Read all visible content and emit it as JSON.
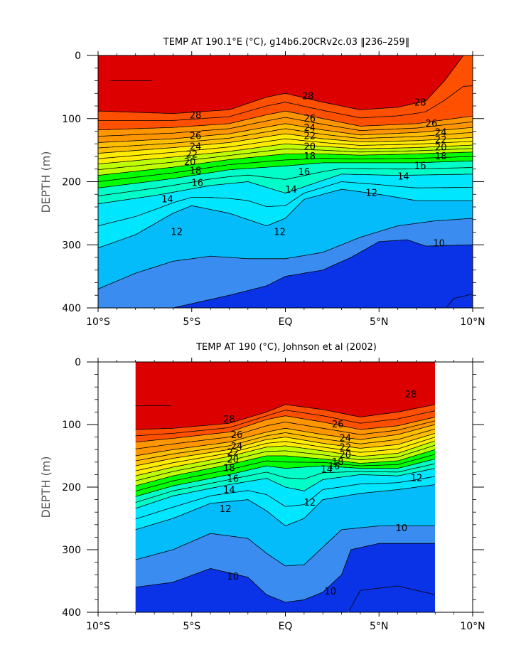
{
  "chart_data": [
    {
      "type": "heatmap",
      "subtype": "filled-contour depth section",
      "title": "TEMP AT 190.1°E (°C), g14b6.20CRv2c.03 ‖236–259‖",
      "ylabel": "DEPTH (m)",
      "xlabel": "",
      "x_ticks": [
        -10,
        -5,
        0,
        5,
        10
      ],
      "x_tick_labels": [
        "10°S",
        "5°S",
        "EQ",
        "5°N",
        "10°N"
      ],
      "y_ticks": [
        0,
        100,
        200,
        300,
        400
      ],
      "y_tick_labels": [
        "0",
        "100",
        "200",
        "300",
        "400"
      ],
      "xlim": [
        -10,
        10
      ],
      "ylim": [
        400,
        0
      ],
      "y_axis_inverted": true,
      "data_extent": [
        -10,
        10
      ],
      "contour_interval": 1,
      "contour_labels": [
        {
          "text": "28",
          "x": -4.8,
          "y": 95
        },
        {
          "text": "28",
          "x": 1.2,
          "y": 65
        },
        {
          "text": "28",
          "x": 7.2,
          "y": 75
        },
        {
          "text": "26",
          "x": -4.8,
          "y": 128
        },
        {
          "text": "24",
          "x": -4.8,
          "y": 145
        },
        {
          "text": "22",
          "x": -5.0,
          "y": 157
        },
        {
          "text": "20",
          "x": -5.1,
          "y": 169
        },
        {
          "text": "18",
          "x": -4.8,
          "y": 183
        },
        {
          "text": "16",
          "x": -4.7,
          "y": 202
        },
        {
          "text": "14",
          "x": -6.3,
          "y": 228
        },
        {
          "text": "12",
          "x": -5.8,
          "y": 280
        },
        {
          "text": "26",
          "x": 1.3,
          "y": 100
        },
        {
          "text": "24",
          "x": 1.3,
          "y": 115
        },
        {
          "text": "22",
          "x": 1.3,
          "y": 128
        },
        {
          "text": "20",
          "x": 1.3,
          "y": 145
        },
        {
          "text": "18",
          "x": 1.3,
          "y": 160
        },
        {
          "text": "16",
          "x": 1.0,
          "y": 185
        },
        {
          "text": "14",
          "x": 0.3,
          "y": 213
        },
        {
          "text": "12",
          "x": -0.3,
          "y": 280
        },
        {
          "text": "12",
          "x": 4.6,
          "y": 218
        },
        {
          "text": "26",
          "x": 7.8,
          "y": 108
        },
        {
          "text": "24",
          "x": 8.3,
          "y": 122
        },
        {
          "text": "22",
          "x": 8.3,
          "y": 134
        },
        {
          "text": "20",
          "x": 8.3,
          "y": 146
        },
        {
          "text": "18",
          "x": 8.3,
          "y": 160
        },
        {
          "text": "16",
          "x": 7.2,
          "y": 175
        },
        {
          "text": "14",
          "x": 6.3,
          "y": 192
        },
        {
          "text": "10",
          "x": 8.2,
          "y": 298
        }
      ],
      "color_levels": [
        {
          "label": "9-10",
          "color": "#0a32e6"
        },
        {
          "label": "10-11",
          "color": "#3a8cf0"
        },
        {
          "label": "11-12",
          "color": "#04bcfa"
        },
        {
          "label": "12-13",
          "color": "#00d2ff"
        },
        {
          "label": "13-14",
          "color": "#00e6ff"
        },
        {
          "label": "14-15",
          "color": "#00ffff"
        },
        {
          "label": "15-16",
          "color": "#00ffc8"
        },
        {
          "label": "16-17",
          "color": "#00ff82"
        },
        {
          "label": "17-18",
          "color": "#00ff00"
        },
        {
          "label": "18-19",
          "color": "#66ff00"
        },
        {
          "label": "19-20",
          "color": "#bfff00"
        },
        {
          "label": "20-21",
          "color": "#ffff00"
        },
        {
          "label": "21-22",
          "color": "#ffec00"
        },
        {
          "label": "22-23",
          "color": "#ffd200"
        },
        {
          "label": "23-24",
          "color": "#ffbe00"
        },
        {
          "label": "24-25",
          "color": "#ffaa00"
        },
        {
          "label": "25-26",
          "color": "#ff9600"
        },
        {
          "label": "26-27",
          "color": "#ff7800"
        },
        {
          "label": "27-28",
          "color": "#ff5000"
        },
        {
          "label": "28-29",
          "color": "#ff0000"
        },
        {
          "label": "29-30",
          "color": "#dd0000"
        }
      ]
    },
    {
      "type": "heatmap",
      "subtype": "filled-contour depth section",
      "title": "TEMP AT 190 (°C), Johnson et al (2002)",
      "ylabel": "DEPTH (m)",
      "xlabel": "",
      "x_ticks": [
        -10,
        -5,
        0,
        5,
        10
      ],
      "x_tick_labels": [
        "10°S",
        "5°S",
        "EQ",
        "5°N",
        "10°N"
      ],
      "y_ticks": [
        0,
        100,
        200,
        300,
        400
      ],
      "y_tick_labels": [
        "0",
        "100",
        "200",
        "300",
        "400"
      ],
      "xlim": [
        -10,
        10
      ],
      "ylim": [
        400,
        0
      ],
      "y_axis_inverted": true,
      "data_extent": [
        -8,
        8
      ],
      "contour_interval": 1,
      "contour_labels": [
        {
          "text": "28",
          "x": -3.0,
          "y": 92
        },
        {
          "text": "28",
          "x": 6.7,
          "y": 52
        },
        {
          "text": "26",
          "x": -2.6,
          "y": 117
        },
        {
          "text": "24",
          "x": -2.6,
          "y": 135
        },
        {
          "text": "22",
          "x": -2.8,
          "y": 145
        },
        {
          "text": "20",
          "x": -2.8,
          "y": 156
        },
        {
          "text": "18",
          "x": -3.0,
          "y": 170
        },
        {
          "text": "16",
          "x": -2.8,
          "y": 187
        },
        {
          "text": "14",
          "x": -3.0,
          "y": 205
        },
        {
          "text": "12",
          "x": -3.2,
          "y": 235
        },
        {
          "text": "26",
          "x": 2.8,
          "y": 100
        },
        {
          "text": "24",
          "x": 3.2,
          "y": 122
        },
        {
          "text": "22",
          "x": 3.2,
          "y": 137
        },
        {
          "text": "20",
          "x": 3.2,
          "y": 149
        },
        {
          "text": "18",
          "x": 2.8,
          "y": 160
        },
        {
          "text": "16",
          "x": 2.6,
          "y": 167
        },
        {
          "text": "14",
          "x": 2.2,
          "y": 172
        },
        {
          "text": "12",
          "x": 1.3,
          "y": 225
        },
        {
          "text": "12",
          "x": 7.0,
          "y": 186
        },
        {
          "text": "10",
          "x": -2.8,
          "y": 343
        },
        {
          "text": "10",
          "x": 2.4,
          "y": 367
        },
        {
          "text": "10",
          "x": 6.2,
          "y": 266
        }
      ],
      "color_levels": [
        {
          "label": "9-10",
          "color": "#0a32e6"
        },
        {
          "label": "10-11",
          "color": "#3a8cf0"
        },
        {
          "label": "11-12",
          "color": "#04bcfa"
        },
        {
          "label": "12-13",
          "color": "#00d2ff"
        },
        {
          "label": "13-14",
          "color": "#00e6ff"
        },
        {
          "label": "14-15",
          "color": "#00ffff"
        },
        {
          "label": "15-16",
          "color": "#00ffc8"
        },
        {
          "label": "16-17",
          "color": "#00ff82"
        },
        {
          "label": "17-18",
          "color": "#00ff00"
        },
        {
          "label": "18-19",
          "color": "#66ff00"
        },
        {
          "label": "19-20",
          "color": "#bfff00"
        },
        {
          "label": "20-21",
          "color": "#ffff00"
        },
        {
          "label": "21-22",
          "color": "#ffec00"
        },
        {
          "label": "22-23",
          "color": "#ffd200"
        },
        {
          "label": "23-24",
          "color": "#ffbe00"
        },
        {
          "label": "24-25",
          "color": "#ffaa00"
        },
        {
          "label": "25-26",
          "color": "#ff9600"
        },
        {
          "label": "26-27",
          "color": "#ff7800"
        },
        {
          "label": "27-28",
          "color": "#ff5000"
        },
        {
          "label": "28-29",
          "color": "#ff0000"
        },
        {
          "label": "29-30",
          "color": "#dd0000"
        }
      ]
    }
  ]
}
